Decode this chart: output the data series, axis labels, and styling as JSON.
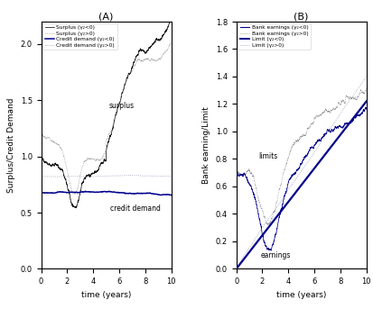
{
  "title_A": "(A)",
  "title_B": "(B)",
  "xlabel": "time (years)",
  "ylabel_A": "Surplus/Credit Demand",
  "ylabel_B": "Bank earning/Limit",
  "xlim": [
    0,
    10
  ],
  "ylim_A": [
    0,
    2.2
  ],
  "ylim_B": [
    0,
    1.8
  ],
  "yticks_A": [
    0,
    0.5,
    1.0,
    1.5,
    2.0
  ],
  "yticks_B": [
    0.0,
    0.2,
    0.4,
    0.6,
    0.8,
    1.0,
    1.2,
    1.4,
    1.6,
    1.8
  ],
  "xticks": [
    0,
    2,
    4,
    6,
    8,
    10
  ],
  "legend_A": [
    "Surplus (γ₂<0)",
    "Surplus (γ₂>0)",
    "Credit demand (γ₂<0)",
    "Credit demand (γ₂>0)"
  ],
  "legend_B": [
    "Bank earnings (γ₂<0)",
    "Bank earnings (γ₂>0)",
    "Limit (γ₂<0)",
    "Limit (γ₂>0)"
  ],
  "color_black": "#111111",
  "color_darkblue": "#00008B",
  "color_gray_dot": "#888888",
  "color_blue_dot": "#9999bb"
}
